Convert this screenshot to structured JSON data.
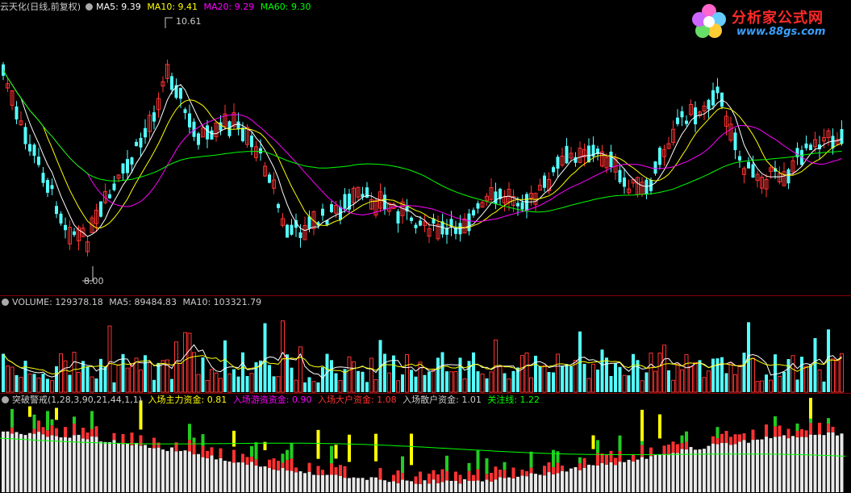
{
  "price_panel": {
    "title": "云天化(日线,前复权)",
    "ma5": "MA5: 9.39",
    "ma10": "MA10: 9.41",
    "ma20": "MA20: 9.29",
    "ma60": "MA60: 9.30",
    "high_label": "10.61",
    "low_label": "8.00"
  },
  "volume_panel": {
    "volume": "VOLUME: 129378.18",
    "ma5": "MA5: 89484.83",
    "ma10": "MA10: 103321.79"
  },
  "indicator_panel": {
    "name": "突破警戒(1,28,3,90,21,44,1,1)",
    "main_fund": "入场主力资金: 0.81",
    "hot_fund": "入场游资资金: 0.90",
    "big_fund": "入场大户资金: 1.08",
    "retail_fund": "入场散户资金: 1.01",
    "focus_line": "关注线: 1.22"
  },
  "logo": {
    "name": "分析家公式网",
    "url": "www.88gs.com"
  },
  "colors": {
    "up": "#ff3232",
    "down": "#54ffff",
    "ma5": "#ffffff",
    "ma10": "#ffff00",
    "ma20": "#ff00ff",
    "ma60": "#00ff00",
    "label": "#cccccc",
    "separator": "#8b0000"
  }
}
